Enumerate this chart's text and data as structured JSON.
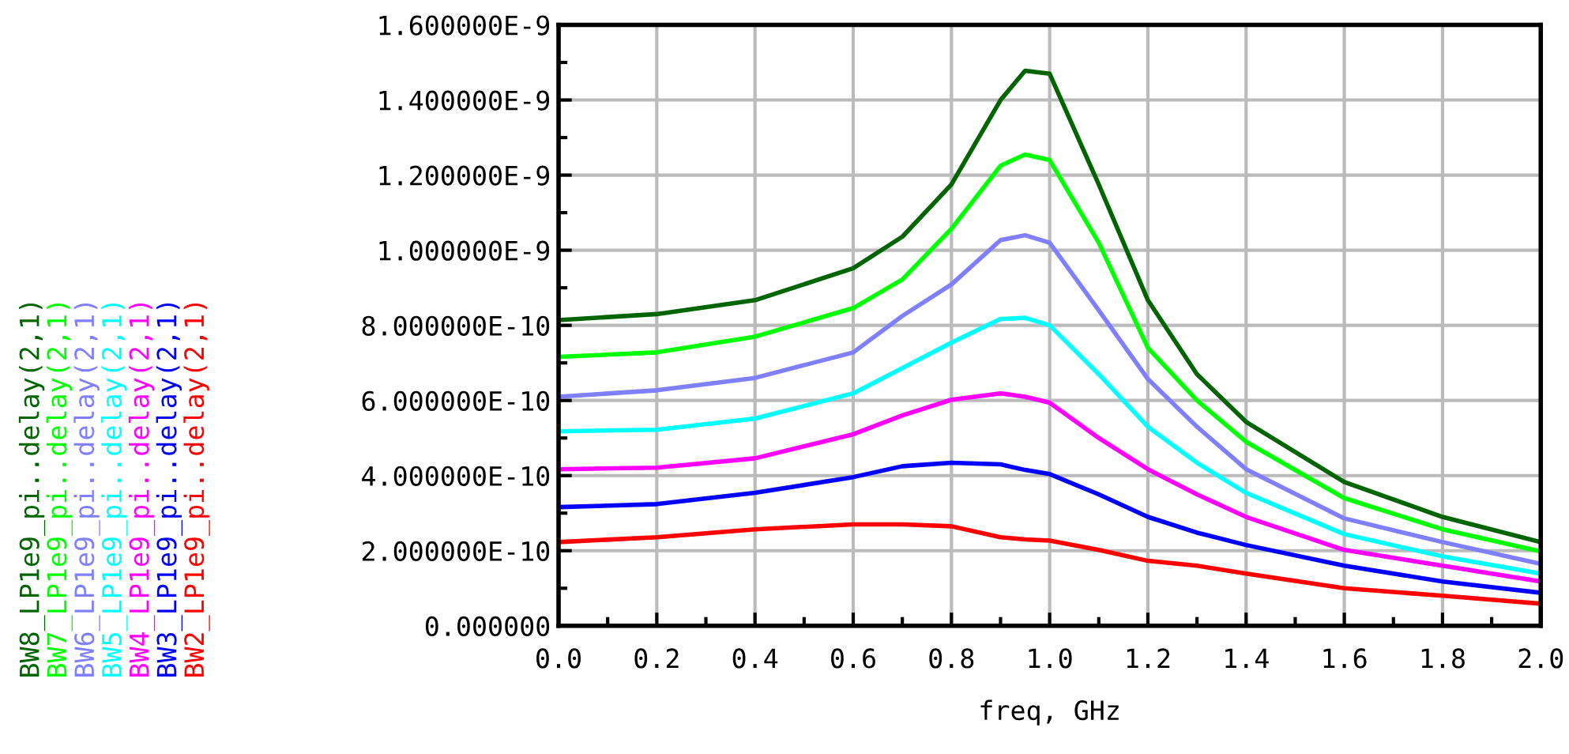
{
  "chart_data": {
    "type": "line",
    "xlabel": "freq, GHz",
    "x": [
      0,
      0.2,
      0.4,
      0.6,
      0.7,
      0.8,
      0.9,
      0.95,
      1.0,
      1.1,
      1.2,
      1.3,
      1.4,
      1.6,
      1.8,
      2.0
    ],
    "series": [
      {
        "name": "BW8_LP1e9_pi..delay(2,1)",
        "color": "#006400",
        "values": [
          8.14e-10,
          8.3e-10,
          8.67e-10,
          9.52e-10,
          1.036e-09,
          1.175e-09,
          1.4e-09,
          1.478e-09,
          1.47e-09,
          1.175e-09,
          8.67e-10,
          6.7e-10,
          5.43e-10,
          3.83e-10,
          2.9e-10,
          2.23e-10
        ]
      },
      {
        "name": "BW7_LP1e9_pi..delay(2,1)",
        "color": "#00ff00",
        "values": [
          7.16e-10,
          7.28e-10,
          7.7e-10,
          8.46e-10,
          9.22e-10,
          1.057e-09,
          1.225e-09,
          1.255e-09,
          1.24e-09,
          1.02e-09,
          7.4e-10,
          6e-10,
          4.9e-10,
          3.4e-10,
          2.57e-10,
          1.98e-10
        ]
      },
      {
        "name": "BW6_LP1e9_pi..delay(2,1)",
        "color": "#7f7fff",
        "values": [
          6.1e-10,
          6.27e-10,
          6.6e-10,
          7.28e-10,
          8.25e-10,
          9.09e-10,
          1.027e-09,
          1.04e-09,
          1.02e-09,
          8.4e-10,
          6.57e-10,
          5.3e-10,
          4.17e-10,
          2.86e-10,
          2.23e-10,
          1.65e-10
        ]
      },
      {
        "name": "BW5_LP1e9_pi..delay(2,1)",
        "color": "#00ffff",
        "values": [
          5.18e-10,
          5.22e-10,
          5.52e-10,
          6.19e-10,
          6.86e-10,
          7.54e-10,
          8.17e-10,
          8.2e-10,
          8e-10,
          6.7e-10,
          5.3e-10,
          4.34e-10,
          3.54e-10,
          2.44e-10,
          1.85e-10,
          1.39e-10
        ]
      },
      {
        "name": "BW4_LP1e9_pi..delay(2,1)",
        "color": "#ff00ff",
        "values": [
          4.17e-10,
          4.21e-10,
          4.46e-10,
          5.1e-10,
          5.6e-10,
          6.02e-10,
          6.19e-10,
          6.1e-10,
          5.94e-10,
          5e-10,
          4.17e-10,
          3.5e-10,
          2.9e-10,
          2.02e-10,
          1.6e-10,
          1.18e-10
        ]
      },
      {
        "name": "BW3_LP1e9_pi..delay(2,1)",
        "color": "#0000ff",
        "values": [
          3.16e-10,
          3.24e-10,
          3.54e-10,
          3.96e-10,
          4.25e-10,
          4.34e-10,
          4.3e-10,
          4.15e-10,
          4.04e-10,
          3.5e-10,
          2.9e-10,
          2.48e-10,
          2.15e-10,
          1.6e-10,
          1.18e-10,
          8.8e-11
        ]
      },
      {
        "name": "BW2_LP1e9_pi..delay(2,1)",
        "color": "#ff0000",
        "values": [
          2.23e-10,
          2.36e-10,
          2.57e-10,
          2.7e-10,
          2.7e-10,
          2.65e-10,
          2.36e-10,
          2.3e-10,
          2.27e-10,
          2.02e-10,
          1.73e-10,
          1.6e-10,
          1.39e-10,
          1e-10,
          8e-11,
          5.9e-11
        ]
      }
    ],
    "xlim": [
      0,
      2.0
    ],
    "xticks": [
      {
        "value": 0,
        "label": "0.0"
      },
      {
        "value": 0.2,
        "label": "0.2"
      },
      {
        "value": 0.4,
        "label": "0.4"
      },
      {
        "value": 0.6,
        "label": "0.6"
      },
      {
        "value": 0.8,
        "label": "0.8"
      },
      {
        "value": 1.0,
        "label": "1.0"
      },
      {
        "value": 1.2,
        "label": "1.2"
      },
      {
        "value": 1.4,
        "label": "1.4"
      },
      {
        "value": 1.6,
        "label": "1.6"
      },
      {
        "value": 1.8,
        "label": "1.8"
      },
      {
        "value": 2.0,
        "label": "2.0"
      }
    ],
    "ylim": [
      0,
      1.6e-09
    ],
    "yticks": [
      {
        "value": 0,
        "label": "0.000000"
      },
      {
        "value": 2e-10,
        "label": "2.000000E-10"
      },
      {
        "value": 4e-10,
        "label": "4.000000E-10"
      },
      {
        "value": 6e-10,
        "label": "6.000000E-10"
      },
      {
        "value": 8e-10,
        "label": "8.000000E-10"
      },
      {
        "value": 1e-09,
        "label": "1.000000E-9"
      },
      {
        "value": 1.2e-09,
        "label": "1.200000E-9"
      },
      {
        "value": 1.4e-09,
        "label": "1.400000E-9"
      },
      {
        "value": 1.6e-09,
        "label": "1.600000E-9"
      }
    ],
    "grid": true,
    "legend": "left",
    "marker": "none",
    "line_style": "solid"
  }
}
